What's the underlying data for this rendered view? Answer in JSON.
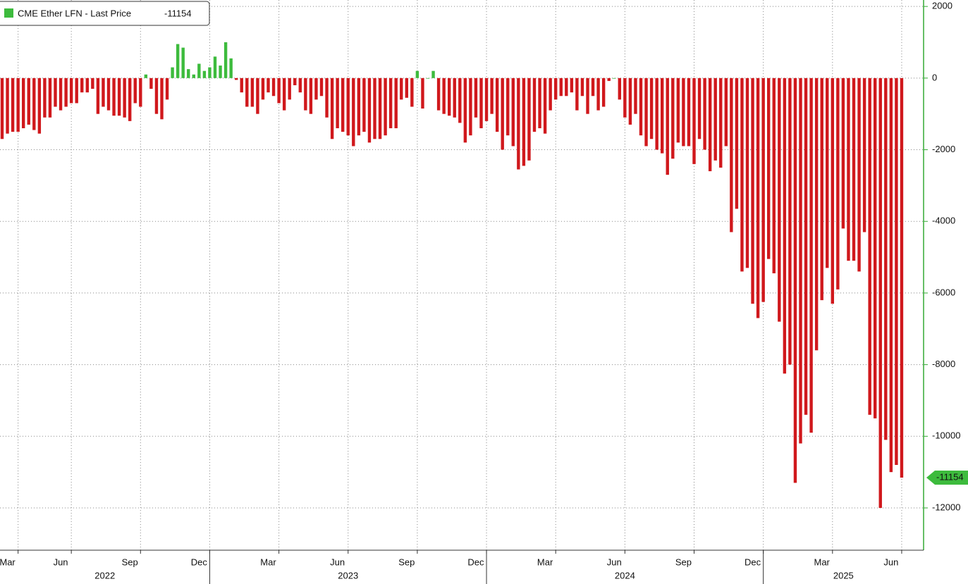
{
  "chart_data": {
    "type": "bar",
    "series": [
      {
        "name": "CME Ether LFN - Last Price",
        "color": "#d0181c",
        "positive_color": "#3dbb3d",
        "values": [
          -1700,
          -1550,
          -1500,
          -1500,
          -1400,
          -1300,
          -1450,
          -1550,
          -1100,
          -1100,
          -800,
          -900,
          -800,
          -700,
          -700,
          -400,
          -400,
          -300,
          -1000,
          -800,
          -900,
          -1050,
          -1050,
          -1100,
          -1200,
          -700,
          -800,
          100,
          -300,
          -1000,
          -1150,
          -600,
          300,
          950,
          850,
          250,
          100,
          400,
          200,
          300,
          600,
          350,
          1000,
          550,
          -50,
          -400,
          -800,
          -800,
          -1000,
          -600,
          -400,
          -500,
          -700,
          -900,
          -600,
          -200,
          -400,
          -900,
          -1000,
          -600,
          -500,
          -1100,
          -1700,
          -1400,
          -1500,
          -1600,
          -1900,
          -1600,
          -1500,
          -1800,
          -1700,
          -1700,
          -1600,
          -1400,
          -1400,
          -600,
          -550,
          -800,
          200,
          -850,
          0,
          200,
          -900,
          -1000,
          -1050,
          -1100,
          -1250,
          -1800,
          -1600,
          -1100,
          -1400,
          -1200,
          -1000,
          -1500,
          -2000,
          -1600,
          -1900,
          -2550,
          -2450,
          -2300,
          -1500,
          -1400,
          -1550,
          -900,
          -600,
          -500,
          -500,
          -400,
          -900,
          -500,
          -1000,
          -500,
          -900,
          -800,
          -80,
          0,
          -600,
          -1100,
          -1300,
          -1000,
          -1600,
          -1900,
          -1700,
          -2000,
          -2100,
          -2700,
          -2250,
          -1800,
          -1900,
          -1900,
          -2400,
          -1700,
          -2000,
          -2600,
          -2300,
          -2500,
          -1900,
          -4300,
          -3650,
          -5400,
          -5300,
          -6300,
          -6700,
          -6250,
          -5050,
          -5450,
          -6800,
          -8250,
          -8000,
          -11300,
          -10200,
          -9400,
          -9900,
          -7600,
          -6200,
          -5300,
          -6300,
          -5900,
          -4200,
          -5100,
          -5100,
          -5400,
          -4300,
          -9400,
          -9500,
          -12000,
          -10100,
          -11000,
          -10800,
          -11154
        ]
      }
    ],
    "categories": [
      null,
      "Mar",
      null,
      null,
      null,
      null,
      null,
      null,
      null,
      null,
      null,
      "Jun",
      null,
      null,
      null,
      null,
      null,
      null,
      null,
      null,
      null,
      null,
      null,
      null,
      "Sep",
      null,
      null,
      null,
      null,
      null,
      null,
      null,
      null,
      null,
      null,
      null,
      null,
      "Dec",
      null,
      null,
      null,
      null,
      null,
      null,
      null,
      null,
      null,
      null,
      null,
      null,
      "Mar",
      null,
      null,
      null,
      null,
      null,
      null,
      null,
      null,
      null,
      null,
      null,
      null,
      "Jun",
      null,
      null,
      null,
      null,
      null,
      null,
      null,
      null,
      null,
      null,
      null,
      null,
      "Sep",
      null,
      null,
      null,
      null,
      null,
      null,
      null,
      null,
      null,
      null,
      null,
      null,
      "Dec",
      null,
      null,
      null,
      null,
      null,
      null,
      null,
      null,
      null,
      null,
      null,
      null,
      "Mar",
      null,
      null,
      null,
      null,
      null,
      null,
      null,
      null,
      null,
      null,
      null,
      null,
      "Jun",
      null,
      null,
      null,
      null,
      null,
      null,
      null,
      null,
      null,
      null,
      null,
      null,
      "Sep",
      null,
      null,
      null,
      null,
      null,
      null,
      null,
      null,
      null,
      null,
      null,
      null,
      "Dec",
      null,
      null,
      null,
      null,
      null,
      null,
      null,
      null,
      null,
      null,
      null,
      null,
      "Mar",
      null,
      null,
      null,
      null,
      null,
      null,
      null,
      null,
      null,
      null,
      null,
      null,
      "Jun",
      null,
      null
    ],
    "years": [
      "2022",
      "2023",
      "2024",
      "2025"
    ],
    "ylim": [
      -13180,
      2180
    ],
    "yticks": [
      2000,
      0,
      -2000,
      -4000,
      -6000,
      -8000,
      -10000,
      -12000
    ],
    "grid": true,
    "legend": "top-left"
  }
}
